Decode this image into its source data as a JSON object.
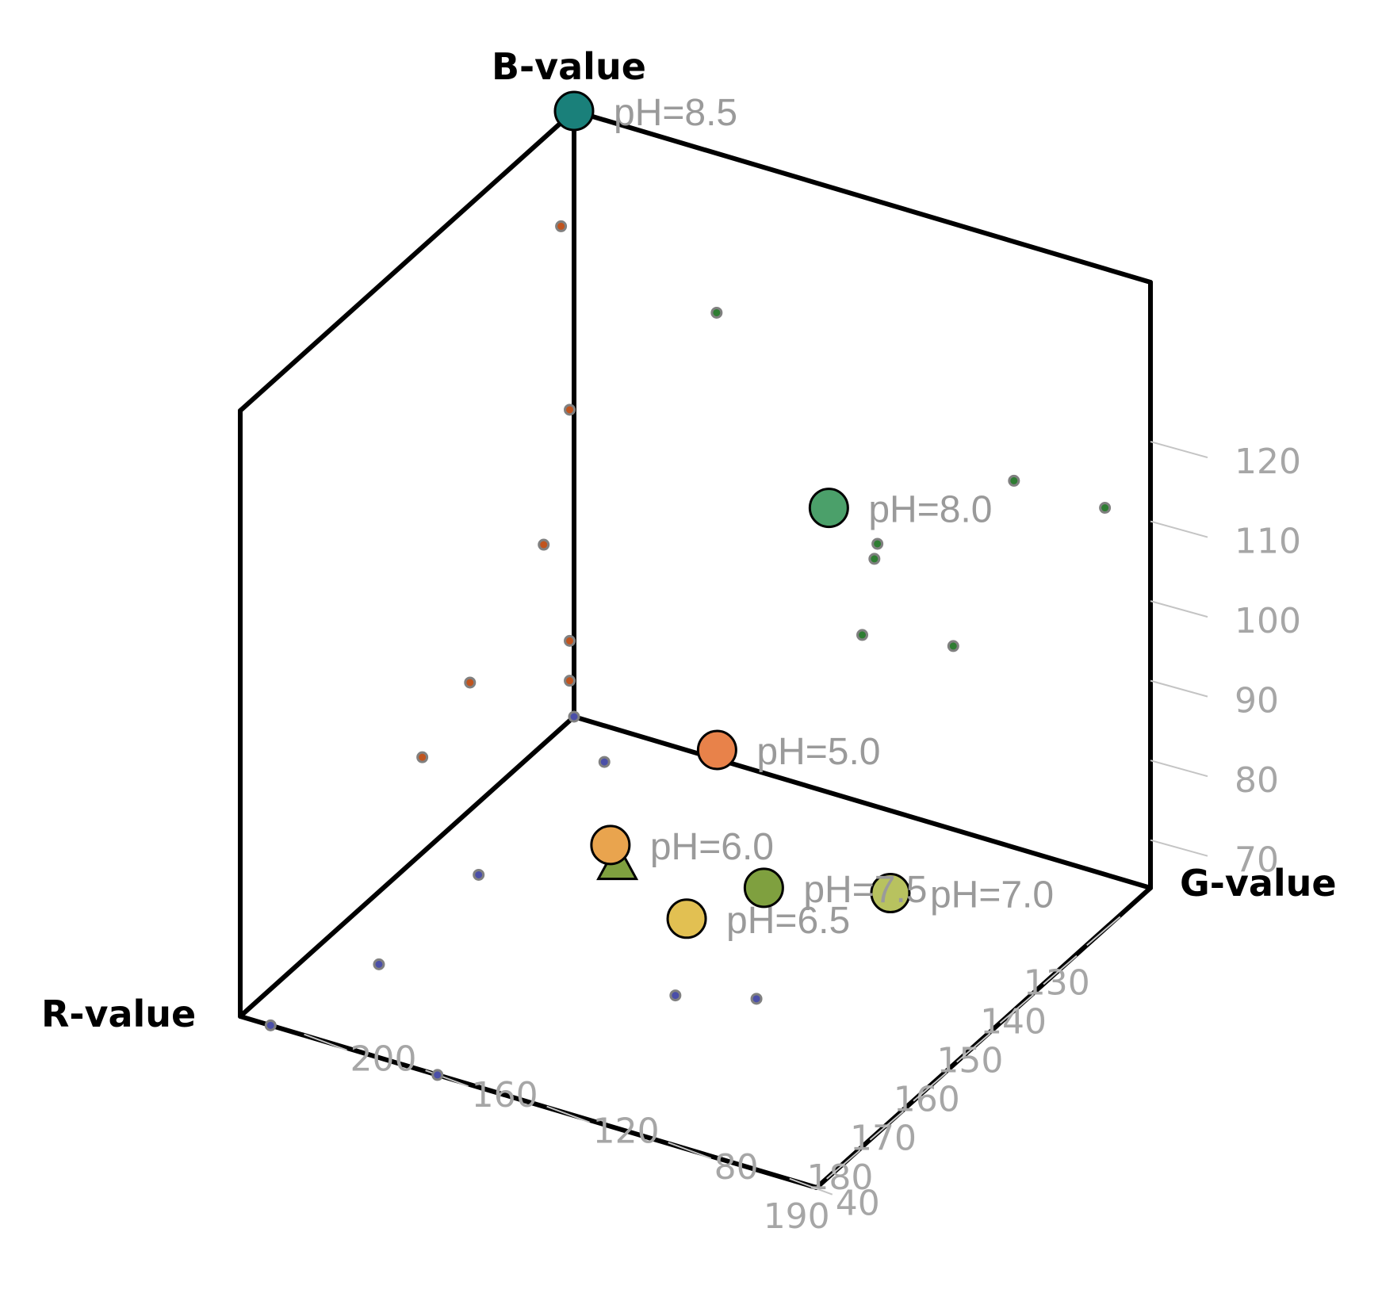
{
  "chart_data": {
    "type": "scatter",
    "projection": "3d",
    "axes": {
      "x": {
        "label": "R-value",
        "range": [
          123,
          200
        ],
        "ticks": [
          130,
          140,
          150,
          160,
          170,
          180,
          190
        ]
      },
      "y": {
        "label": "G-value",
        "range": [
          30,
          220
        ],
        "ticks": [
          40,
          80,
          120,
          160,
          200
        ]
      },
      "z": {
        "label": "B-value",
        "range": [
          64,
          140
        ],
        "ticks": [
          70,
          80,
          90,
          100,
          110,
          120
        ]
      }
    },
    "grid": false,
    "legend": "none",
    "points": [
      {
        "label": "pH=5.0",
        "r": 132,
        "g": 160,
        "b": 71,
        "color": "#E8824A"
      },
      {
        "label": "pH=6.0",
        "r": 158,
        "g": 158,
        "b": 72,
        "color": "#E9A44E"
      },
      {
        "label": "pH=6.5",
        "r": 174,
        "g": 110,
        "b": 76,
        "color": "#E2C052"
      },
      {
        "label": "pH=7.0",
        "r": 162,
        "g": 60,
        "b": 79,
        "color": "#B8C25F"
      },
      {
        "label": "pH=7.5",
        "r": 159,
        "g": 106,
        "b": 73,
        "color": "#7FA03F"
      },
      {
        "label": "pH=8.0",
        "r": 165,
        "g": 76,
        "b": 127,
        "color": "#4BA06A"
      },
      {
        "label": "pH=8.5",
        "r": 123,
        "g": 220,
        "b": 140,
        "color": "#1A807A"
      }
    ],
    "triangle_point": {
      "r": 162,
      "g": 150,
      "b": 72,
      "color": "#7FA03F"
    },
    "projections": {
      "rb_wall": {
        "color": "#C0541E",
        "points": [
          [
            124,
            103
          ],
          [
            147,
            80
          ],
          [
            130,
            89
          ],
          [
            158,
            76
          ],
          [
            124,
            74
          ],
          [
            124,
            69
          ],
          [
            126,
            127
          ]
        ]
      },
      "gb_wall": {
        "color": "#2E7D32",
        "points": [
          [
            173,
            120
          ],
          [
            120,
            97
          ],
          [
            95,
            87
          ],
          [
            121,
            95
          ],
          [
            125,
            85
          ],
          [
            75,
            110
          ],
          [
            45,
            110
          ]
        ]
      },
      "rg_floor": {
        "color": "#4B4FA8",
        "points": [
          [
            130,
            200
          ],
          [
            159,
            200
          ],
          [
            182,
            200
          ],
          [
            200,
            155
          ],
          [
            200,
            210
          ],
          [
            171,
            118
          ],
          [
            123,
            220
          ],
          [
            167,
            97
          ]
        ]
      }
    }
  }
}
